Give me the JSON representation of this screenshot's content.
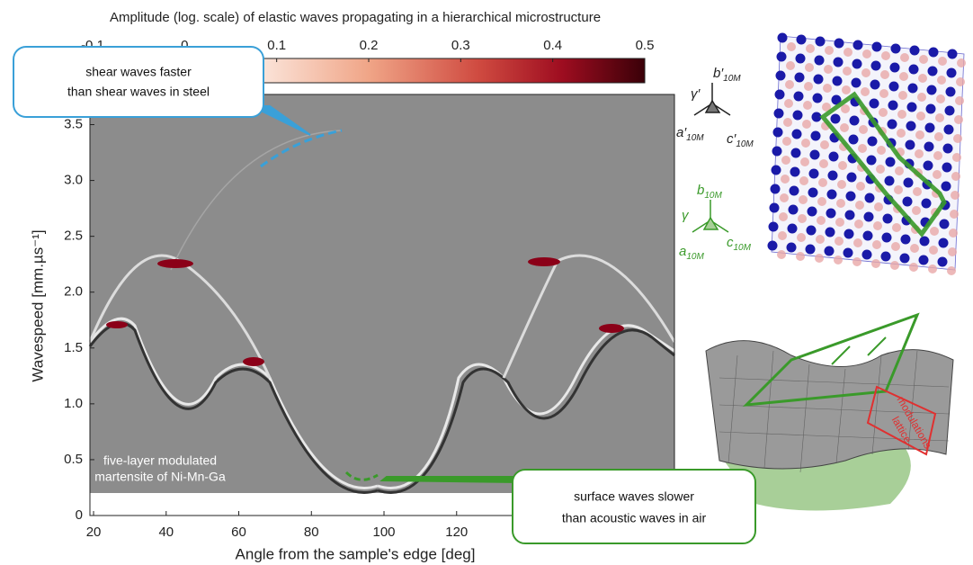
{
  "chart_data": {
    "type": "heatmap",
    "colorbar_title": "Amplitude (log. scale) of elastic waves propagating in a hierarchical microstructure",
    "colorbar_lim": [
      -0.1,
      0.5
    ],
    "colorbar_ticks": [
      -0.1,
      0,
      0.1,
      0.2,
      0.3,
      0.4,
      0.5
    ],
    "xlabel": "Angle from the sample's edge [deg]",
    "ylabel": "Wavespeed [mm.µs⁻¹]",
    "xlim": [
      19,
      180
    ],
    "xticks": [
      20,
      40,
      60,
      80,
      100,
      120
    ],
    "ylim": [
      0,
      3.77
    ],
    "yticks": [
      {
        "value": 0,
        "label": "0"
      },
      {
        "value": 0.5,
        "label": "0.5"
      },
      {
        "value": 1,
        "label": "1.0"
      },
      {
        "value": 1.5,
        "label": "1.5"
      },
      {
        "value": 2,
        "label": "2.0"
      },
      {
        "value": 2.5,
        "label": "2.5"
      },
      {
        "value": 3,
        "label": "3.0"
      },
      {
        "value": 3.5,
        "label": "3.5"
      }
    ],
    "annotations": {
      "shear": [
        "shear waves faster",
        "than shear waves in steel"
      ],
      "surface": [
        "surface waves slower",
        "than acoustic waves in air"
      ],
      "material": [
        "five-layer modulated",
        "martensite of Ni-Mn-Ga"
      ],
      "lattice": [
        "lattice",
        "modulations"
      ]
    },
    "axes_labels": {
      "b_prime": {
        "main": "b′",
        "sub": "10M"
      },
      "a_prime": {
        "main": "a′",
        "sub": "10M"
      },
      "c_prime": {
        "main": "c′",
        "sub": "10M"
      },
      "gamma_prime": "γ′",
      "b": {
        "main": "b",
        "sub": "10M"
      },
      "a": {
        "main": "a",
        "sub": "10M"
      },
      "c": {
        "main": "c",
        "sub": "10M"
      },
      "gamma": "γ"
    }
  }
}
